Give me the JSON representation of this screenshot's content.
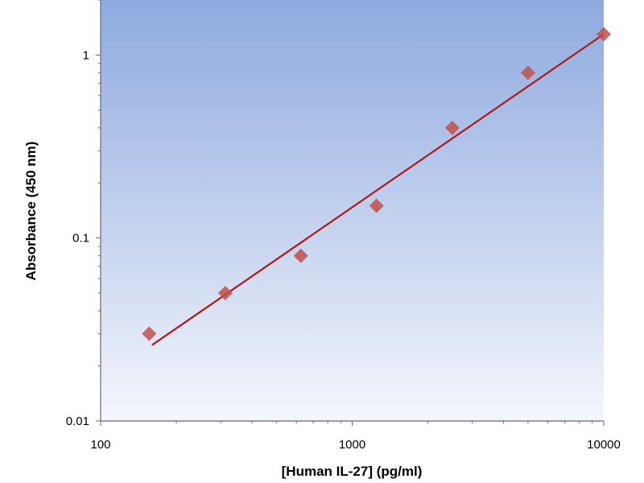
{
  "chart_data": {
    "type": "scatter",
    "title": "",
    "xlabel": "[Human IL-27] (pg/ml)",
    "ylabel": "Absorbance (450 nm)",
    "xscale": "log",
    "yscale": "log",
    "xlim": [
      100,
      10000
    ],
    "ylim": [
      0.01,
      2
    ],
    "x_ticks": [
      100,
      1000,
      10000
    ],
    "x_tick_labels": [
      "100",
      "1000",
      "10000"
    ],
    "y_ticks": [
      0.01,
      0.1,
      1
    ],
    "y_tick_labels": [
      "0.01",
      "0.1",
      "1"
    ],
    "grid": false,
    "legend": "none",
    "series": [
      {
        "kind": "scatter",
        "marker": "diamond",
        "color": "#c0504d",
        "x": [
          156,
          313,
          625,
          1250,
          2500,
          5000,
          10000
        ],
        "y": [
          0.03,
          0.05,
          0.08,
          0.15,
          0.4,
          0.8,
          1.3
        ]
      },
      {
        "kind": "line",
        "color": "#b01818",
        "x": [
          160,
          10000
        ],
        "y": [
          0.026,
          1.3
        ]
      }
    ],
    "background": {
      "gradient_top": "#8eaadf",
      "gradient_bottom": "#f4f6fc"
    }
  }
}
